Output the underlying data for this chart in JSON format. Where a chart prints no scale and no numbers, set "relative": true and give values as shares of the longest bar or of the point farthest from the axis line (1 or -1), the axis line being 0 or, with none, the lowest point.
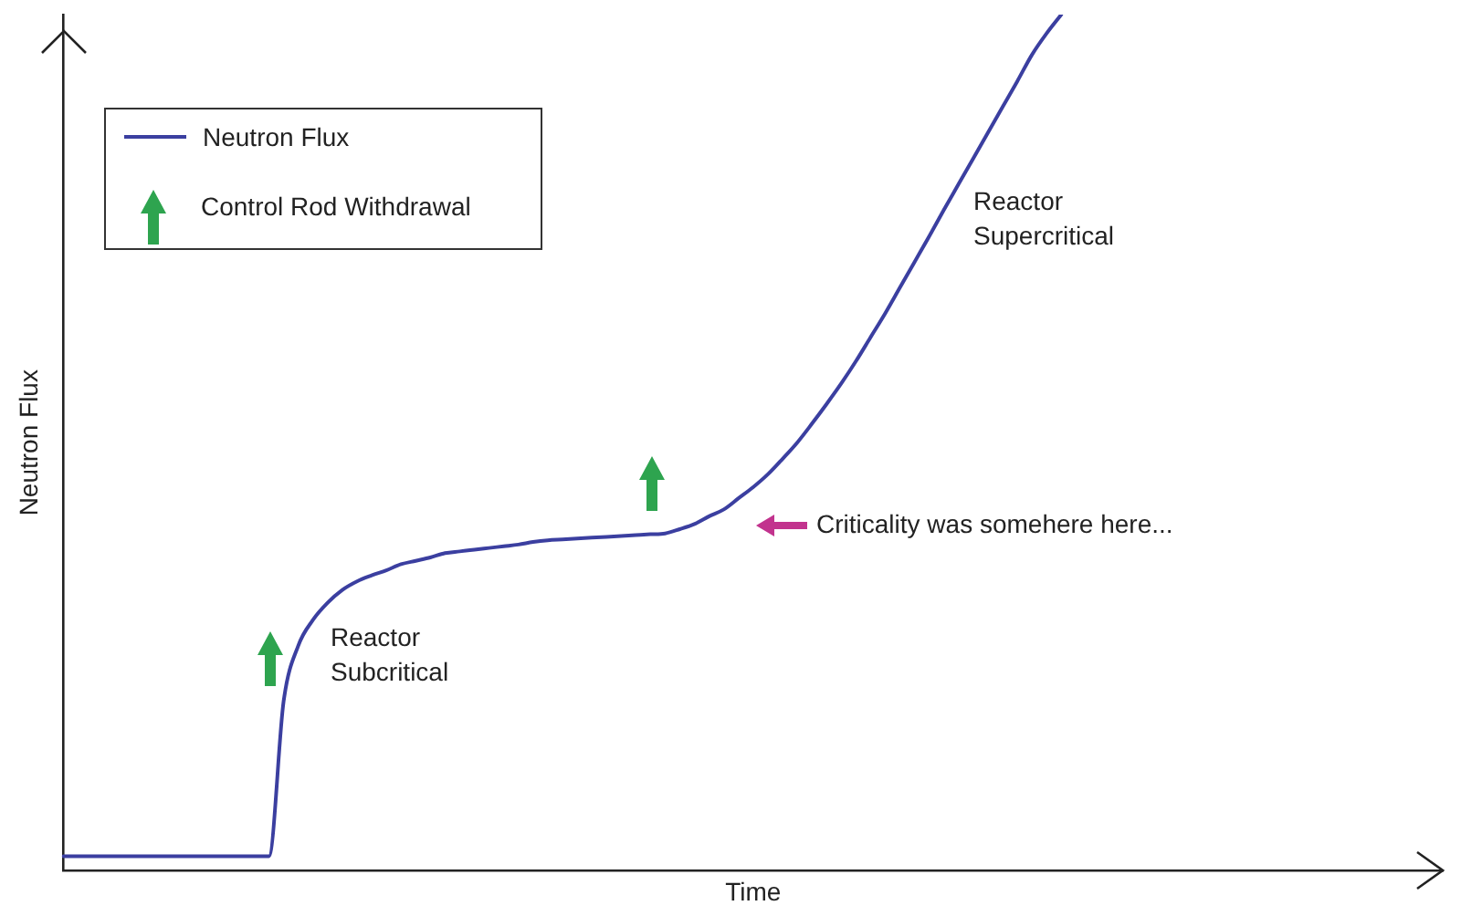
{
  "chart_data": {
    "type": "line",
    "relative": true,
    "xlabel": "Time",
    "ylabel": "Neutron Flux",
    "legend": "top left",
    "marker": "none",
    "line_style": "solid",
    "grid": false,
    "tick_labels": false,
    "categories": [
      null,
      null,
      null,
      null,
      null,
      null,
      null,
      null,
      null,
      null,
      null,
      null,
      null,
      null,
      null,
      null,
      null,
      null,
      null,
      null,
      null,
      null,
      null,
      null,
      null,
      null,
      null,
      null,
      null,
      null,
      null,
      null,
      null,
      null,
      null,
      null,
      null,
      null,
      null,
      null,
      null,
      null,
      null,
      null,
      null,
      null,
      null,
      null,
      null,
      null,
      null,
      null,
      null,
      null,
      null,
      null,
      null,
      null,
      null,
      null,
      null,
      null,
      null,
      null,
      null,
      null,
      null,
      null,
      null,
      null,
      null,
      null,
      null,
      null,
      null,
      null,
      null,
      null,
      null,
      null,
      null,
      null,
      null,
      null,
      null,
      null,
      null,
      null,
      null,
      null,
      null,
      null,
      null,
      null,
      null
    ],
    "series": [
      {
        "name": "Neutron Flux",
        "color": "#3b3fa0",
        "values": [
          0.017,
          0.017,
          0.017,
          0.017,
          0.017,
          0.017,
          0.017,
          0.017,
          0.017,
          0.017,
          0.017,
          0.017,
          0.017,
          0.017,
          0.017,
          0.198,
          0.263,
          0.293,
          0.313,
          0.328,
          0.338,
          0.345,
          0.351,
          0.358,
          0.362,
          0.366,
          0.371,
          0.373,
          0.375,
          0.377,
          0.379,
          0.381,
          0.384,
          0.386,
          0.387,
          0.388,
          0.389,
          0.39,
          0.391,
          0.392,
          0.393,
          0.394,
          0.399,
          0.405,
          0.414,
          0.422,
          0.435,
          0.448,
          0.463,
          0.481,
          0.5,
          0.522,
          0.545,
          0.569,
          0.595,
          0.623,
          0.651,
          0.681,
          0.711,
          0.741,
          0.772,
          0.802,
          0.832,
          0.862,
          0.892,
          0.922,
          0.953,
          0.978,
          1,
          null,
          null,
          null,
          null,
          null,
          null,
          null,
          null,
          null,
          null,
          null,
          null,
          null,
          null,
          null,
          null,
          null,
          null,
          null,
          null,
          null,
          null,
          null,
          null,
          null,
          null
        ]
      }
    ],
    "annotations": [
      "Control Rod Withdrawal",
      "Reactor\nSubcritical",
      "Reactor\nSupercritical",
      "Criticality was somehere here..."
    ]
  }
}
